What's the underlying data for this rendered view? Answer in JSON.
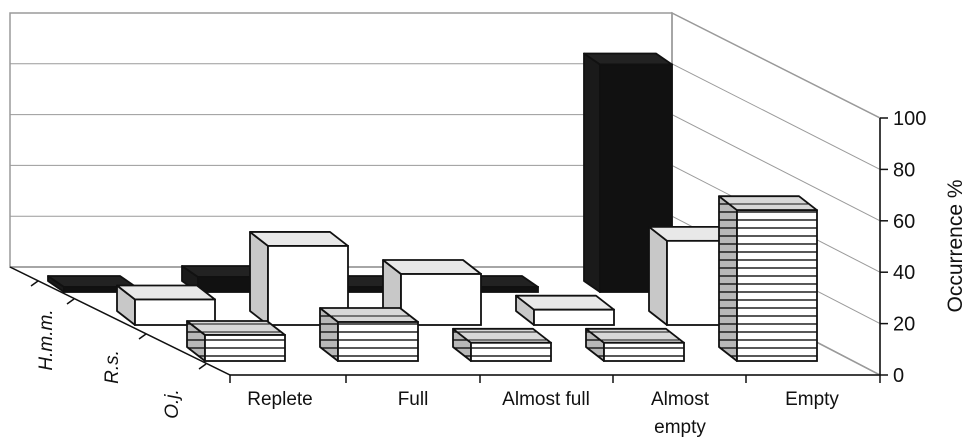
{
  "chart_data": {
    "type": "bar",
    "style": "3d-grouped-depth",
    "categories": [
      "Replete",
      "Full",
      "Almost full",
      "Almost empty",
      "Empty"
    ],
    "category_labels": [
      [
        "Replete"
      ],
      [
        "Full"
      ],
      [
        "Almost full"
      ],
      [
        "Almost",
        "empty"
      ],
      [
        "Empty"
      ]
    ],
    "series": [
      {
        "name": "H.m.m.",
        "fill": "solid",
        "values": [
          2,
          6,
          2,
          2,
          91
        ]
      },
      {
        "name": "R.s.",
        "fill": "white-gray-side",
        "values": [
          10,
          31,
          20,
          6,
          33
        ]
      },
      {
        "name": "O.j.",
        "fill": "horizontal-stripes",
        "values": [
          10,
          15,
          7,
          7,
          58
        ]
      }
    ],
    "ylabel": "Occurrence %",
    "ylim": [
      0,
      100
    ],
    "yticks": [
      "0",
      "20",
      "40",
      "60",
      "80",
      "100"
    ],
    "grid": true,
    "colors": {
      "solid": "#111111",
      "side_gray": "#c8c8c8",
      "white": "#ffffff",
      "stroke": "#111111",
      "grid": "#9a9a9a"
    }
  }
}
